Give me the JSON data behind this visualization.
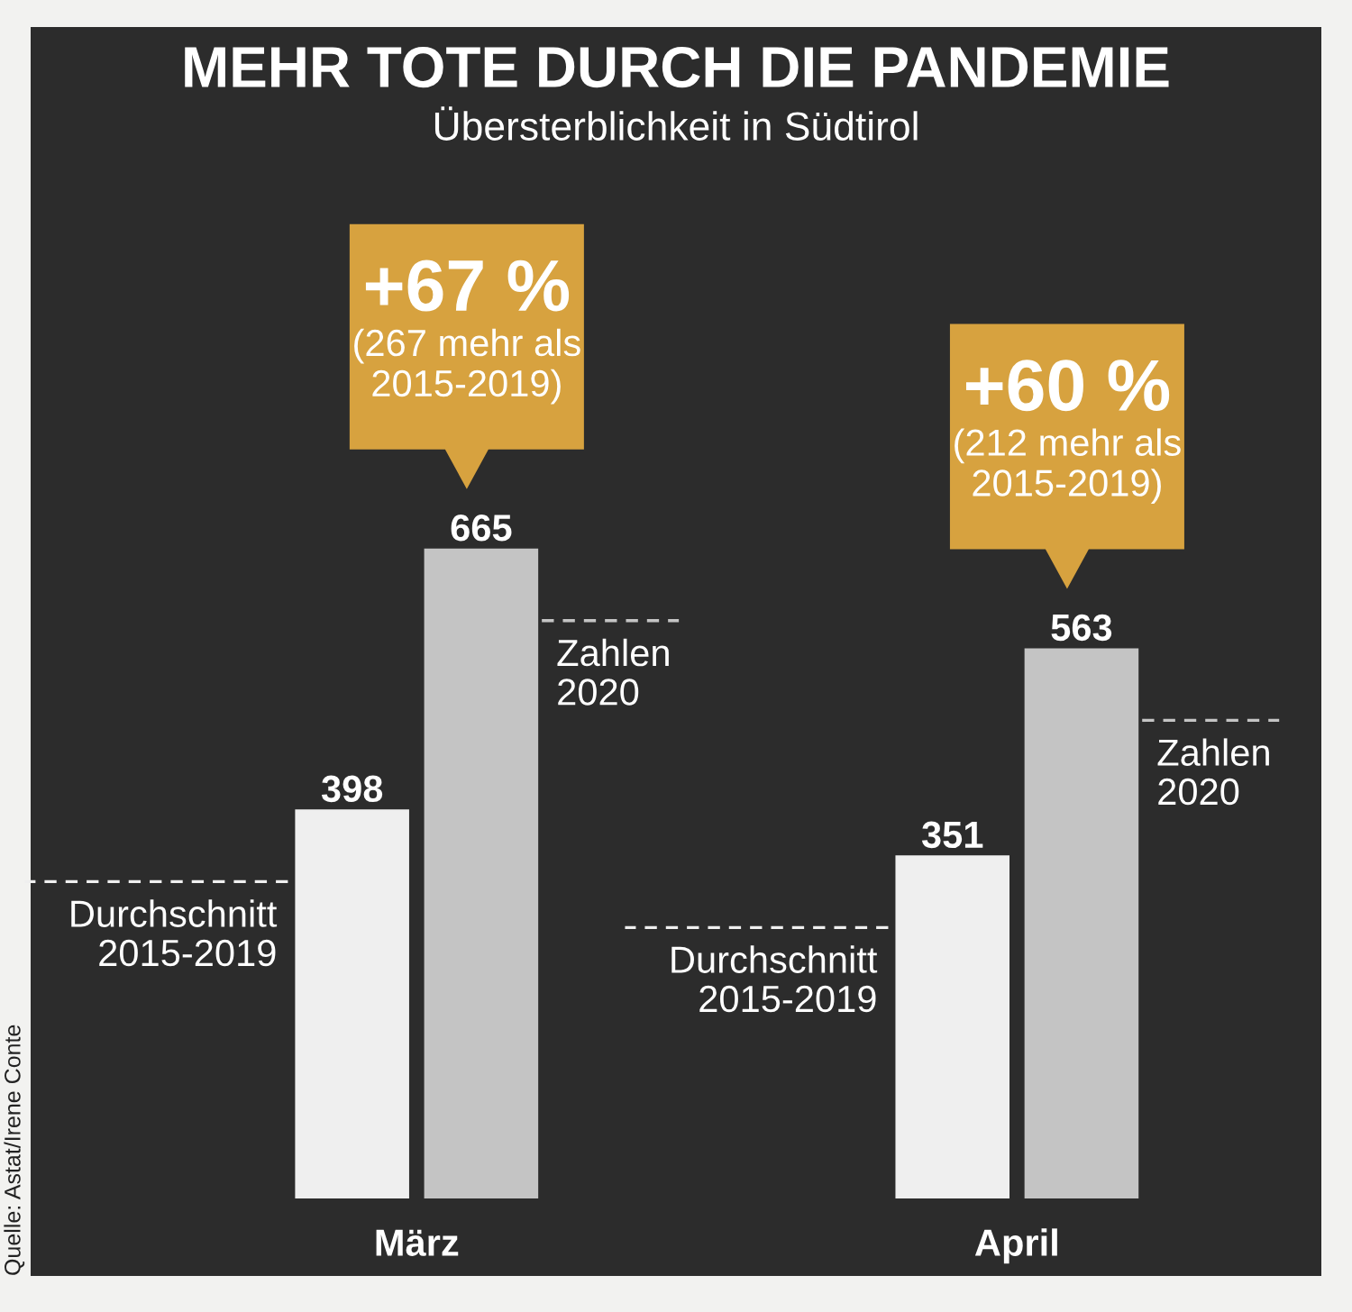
{
  "chart_data": {
    "type": "bar",
    "title": "MEHR TOTE DURCH DIE PANDEMIE",
    "subtitle": "Übersterblichkeit in Südtirol",
    "categories": [
      "März",
      "April"
    ],
    "series": [
      {
        "name": "Durchschnitt 2015-2019",
        "color": "#efefef",
        "values": [
          398,
          351
        ]
      },
      {
        "name": "Zahlen 2020",
        "color": "#c4c4c4",
        "values": [
          665,
          563
        ]
      }
    ],
    "data_labels": true,
    "annotations": [
      "+67 %",
      "(267 mehr als\n2015-2019)",
      "+60 %",
      "(212 mehr als\n2015-2019)",
      "Quelle: Astat/Irene Conte"
    ]
  }
}
